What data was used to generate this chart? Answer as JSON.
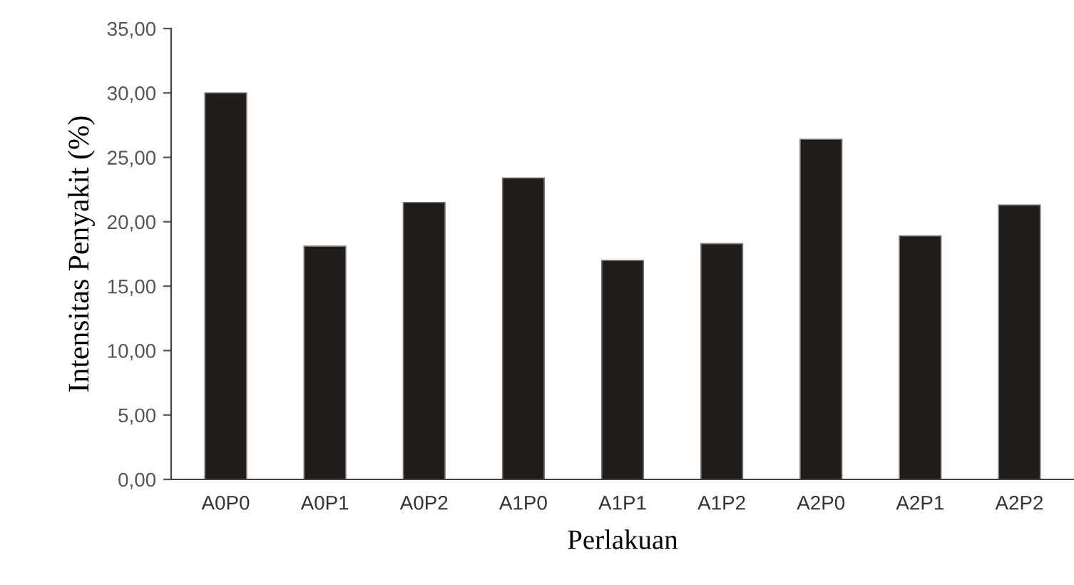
{
  "chart_data": {
    "type": "bar",
    "xlabel": "Perlakuan",
    "ylabel": "Intensitas Penyakit (%)",
    "categories": [
      "A0P0",
      "A0P1",
      "A0P2",
      "A1P0",
      "A1P1",
      "A1P2",
      "A2P0",
      "A2P1",
      "A2P2"
    ],
    "values": [
      30.0,
      18.1,
      21.5,
      23.4,
      17.0,
      18.3,
      26.4,
      18.9,
      21.3
    ],
    "color": "#201c19",
    "ylim": [
      0,
      35
    ],
    "yticks": [
      {
        "value": 0,
        "label": "0,00"
      },
      {
        "value": 5,
        "label": "5,00"
      },
      {
        "value": 10,
        "label": "10,00"
      },
      {
        "value": 15,
        "label": "15,00"
      },
      {
        "value": 20,
        "label": "20,00"
      },
      {
        "value": 25,
        "label": "25,00"
      },
      {
        "value": 30,
        "label": "30,00"
      },
      {
        "value": 35,
        "label": "35,00"
      }
    ],
    "grid": false,
    "legend": false
  }
}
